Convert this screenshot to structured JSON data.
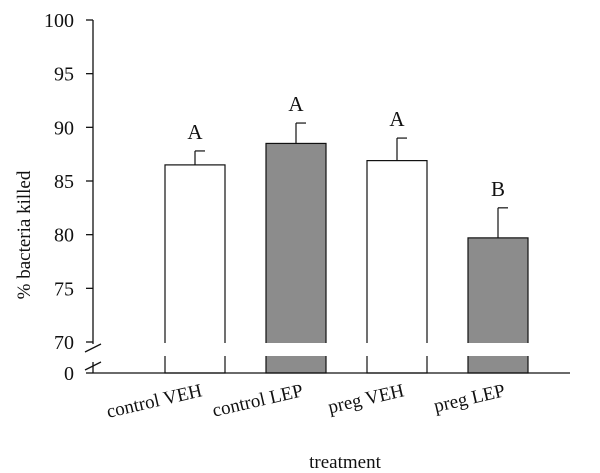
{
  "chart_data": {
    "type": "bar",
    "title": "",
    "xlabel": "treatment",
    "ylabel": "% bacteria killed",
    "ylim": [
      70,
      100
    ],
    "axis_break": {
      "lower_tick": 0,
      "upper_start": 70
    },
    "yticks": [
      0,
      70,
      75,
      80,
      85,
      90,
      95,
      100
    ],
    "grid": false,
    "legend": "none",
    "categories": [
      "control VEH",
      "control LEP",
      "preg VEH",
      "preg LEP"
    ],
    "values": [
      86.5,
      88.5,
      86.9,
      79.7
    ],
    "errors": [
      1.3,
      1.9,
      2.1,
      2.8
    ],
    "significance_letters": [
      "A",
      "A",
      "A",
      "B"
    ],
    "bar_colors": [
      "#ffffff",
      "#8c8c8c",
      "#ffffff",
      "#8c8c8c"
    ]
  }
}
